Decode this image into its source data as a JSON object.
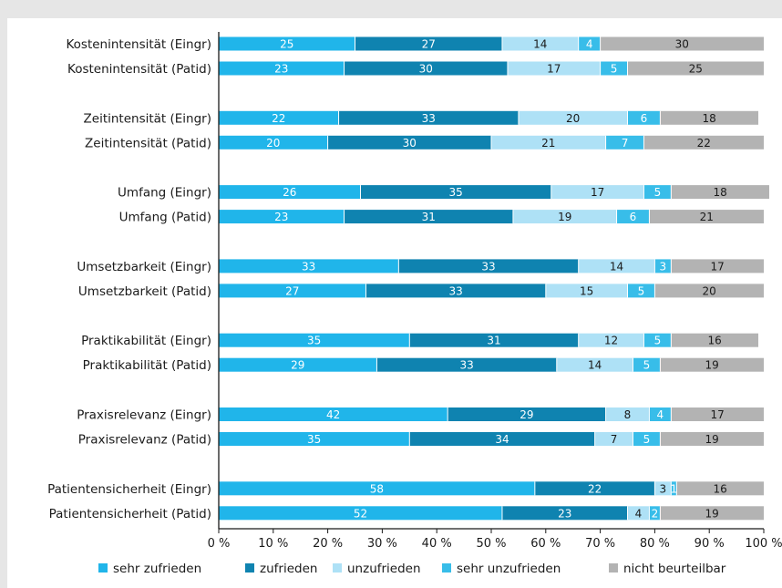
{
  "chart_data": {
    "type": "bar",
    "stacked": true,
    "orientation": "horizontal",
    "categories": [
      "Kostenintensität (Eingr)",
      "Kostenintensität (Patid)",
      "Zeitintensität (Eingr)",
      "Zeitintensität (Patid)",
      "Umfang (Eingr)",
      "Umfang (Patid)",
      "Umsetzbarkeit (Eingr)",
      "Umsetzbarkeit (Patid)",
      "Praktikabilität (Eingr)",
      "Praktikabilität (Patid)",
      "Praxisrelevanz (Eingr)",
      "Praxisrelevanz (Patid)",
      "Patientensicherheit (Eingr)",
      "Patientensicherheit (Patid)"
    ],
    "series": [
      {
        "name": "sehr zufrieden",
        "color": "#20b5ea",
        "values": [
          25,
          23,
          22,
          20,
          26,
          23,
          33,
          27,
          35,
          29,
          42,
          35,
          58,
          52
        ]
      },
      {
        "name": "zufrieden",
        "color": "#0f83b0",
        "values": [
          27,
          30,
          33,
          30,
          35,
          31,
          33,
          33,
          31,
          33,
          29,
          34,
          22,
          23
        ]
      },
      {
        "name": "unzufrieden",
        "color": "#aee1f6",
        "values": [
          14,
          17,
          20,
          21,
          17,
          19,
          14,
          15,
          12,
          14,
          8,
          7,
          3,
          4
        ]
      },
      {
        "name": "sehr unzufrieden",
        "color": "#38bde9",
        "values": [
          4,
          5,
          6,
          7,
          5,
          6,
          3,
          5,
          5,
          5,
          4,
          5,
          1,
          2
        ]
      },
      {
        "name": "nicht beurteilbar",
        "color": "#b3b3b3",
        "values": [
          30,
          25,
          18,
          22,
          18,
          21,
          17,
          20,
          16,
          19,
          17,
          19,
          16,
          19
        ]
      }
    ],
    "x_ticks": [
      "0 %",
      "10 %",
      "20 %",
      "30 %",
      "40 %",
      "50 %",
      "60 %",
      "70 %",
      "80 %",
      "90 %",
      "100 %"
    ],
    "xlim": [
      0,
      100
    ],
    "legend_position": "bottom",
    "grid": false
  }
}
